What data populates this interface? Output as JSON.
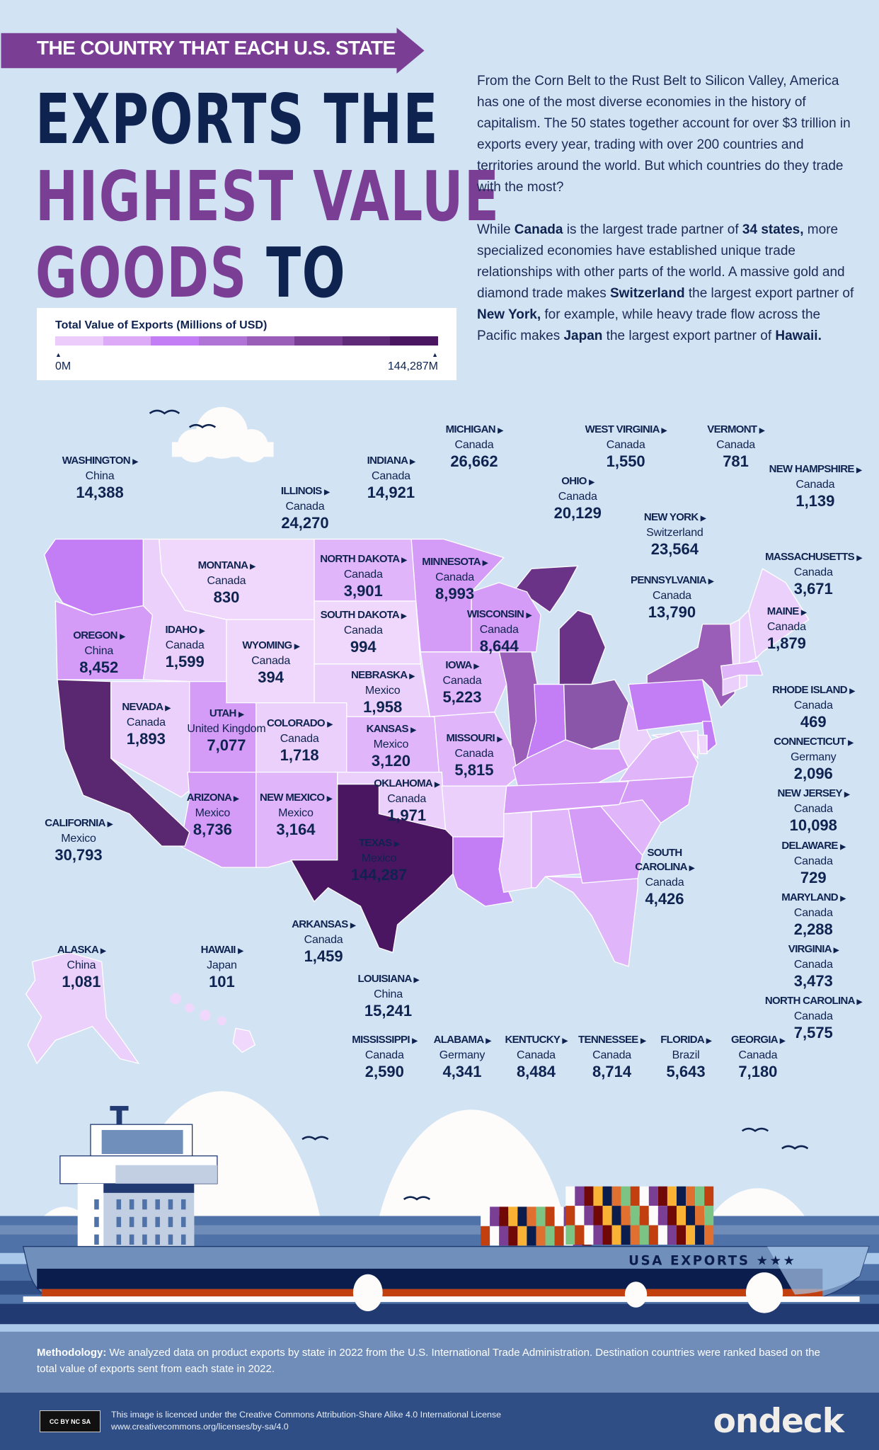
{
  "header": {
    "banner": "THE COUNTRY THAT EACH U.S. STATE",
    "title_line1": "EXPORTS THE",
    "title_line2": "HIGHEST VALUE",
    "title_line3a": "GOODS",
    "title_line3b": "TO"
  },
  "legend": {
    "title": "Total Value of Exports (Millions of USD)",
    "min": "0M",
    "max": "144,287M",
    "colors": [
      "#ecccfb",
      "#dcaaf7",
      "#c47ef5",
      "#b073d6",
      "#9a5db8",
      "#7a3f95",
      "#5f2a78",
      "#4a1661"
    ]
  },
  "intro": {
    "p1": "From the Corn Belt to the Rust Belt to Silicon Valley, America has one of the most diverse economies in the history of capitalism. The 50 states together account for over $3 trillion in exports every year, trading with over 200 countries and territories around the world. But which countries do they trade with the most?",
    "p2_a": "While ",
    "p2_b": "Canada",
    "p2_c": " is the largest trade partner of ",
    "p2_d": "34 states,",
    "p2_e": " more specialized economies have established unique trade relationships with other parts of the world. A massive gold and diamond trade makes ",
    "p2_f": "Switzerland",
    "p2_g": " the largest export partner of ",
    "p2_h": "New York,",
    "p2_i": " for example, while heavy trade flow across the Pacific makes ",
    "p2_j": "Japan",
    "p2_k": " the largest export partner of ",
    "p2_l": "Hawaii."
  },
  "states": [
    {
      "name": "WASHINGTON",
      "country": "China",
      "value": "14,388"
    },
    {
      "name": "ILLINOIS",
      "country": "Canada",
      "value": "24,270"
    },
    {
      "name": "INDIANA",
      "country": "Canada",
      "value": "14,921"
    },
    {
      "name": "MICHIGAN",
      "country": "Canada",
      "value": "26,662"
    },
    {
      "name": "WEST VIRGINIA",
      "country": "Canada",
      "value": "1,550"
    },
    {
      "name": "VERMONT",
      "country": "Canada",
      "value": "781"
    },
    {
      "name": "NEW HAMPSHIRE",
      "country": "Canada",
      "value": "1,139"
    },
    {
      "name": "OHIO",
      "country": "Canada",
      "value": "20,129"
    },
    {
      "name": "NEW YORK",
      "country": "Switzerland",
      "value": "23,564"
    },
    {
      "name": "MONTANA",
      "country": "Canada",
      "value": "830"
    },
    {
      "name": "NORTH DAKOTA",
      "country": "Canada",
      "value": "3,901"
    },
    {
      "name": "MINNESOTA",
      "country": "Canada",
      "value": "8,993"
    },
    {
      "name": "MASSACHUSETTS",
      "country": "Canada",
      "value": "3,671"
    },
    {
      "name": "PENNSYLVANIA",
      "country": "Canada",
      "value": "13,790"
    },
    {
      "name": "MAINE",
      "country": "Canada",
      "value": "1,879"
    },
    {
      "name": "OREGON",
      "country": "China",
      "value": "8,452"
    },
    {
      "name": "IDAHO",
      "country": "Canada",
      "value": "1,599"
    },
    {
      "name": "SOUTH DAKOTA",
      "country": "Canada",
      "value": "994"
    },
    {
      "name": "WISCONSIN",
      "country": "Canada",
      "value": "8,644"
    },
    {
      "name": "WYOMING",
      "country": "Canada",
      "value": "394"
    },
    {
      "name": "IOWA",
      "country": "Canada",
      "value": "5,223"
    },
    {
      "name": "NEBRASKA",
      "country": "Mexico",
      "value": "1,958"
    },
    {
      "name": "RHODE ISLAND",
      "country": "Canada",
      "value": "469"
    },
    {
      "name": "NEVADA",
      "country": "Canada",
      "value": "1,893"
    },
    {
      "name": "UTAH",
      "country": "United Kingdom",
      "value": "7,077"
    },
    {
      "name": "COLORADO",
      "country": "Canada",
      "value": "1,718"
    },
    {
      "name": "KANSAS",
      "country": "Mexico",
      "value": "3,120"
    },
    {
      "name": "MISSOURI",
      "country": "Canada",
      "value": "5,815"
    },
    {
      "name": "CONNECTICUT",
      "country": "Germany",
      "value": "2,096"
    },
    {
      "name": "OKLAHOMA",
      "country": "Canada",
      "value": "1,971"
    },
    {
      "name": "NEW JERSEY",
      "country": "Canada",
      "value": "10,098"
    },
    {
      "name": "ARIZONA",
      "country": "Mexico",
      "value": "8,736"
    },
    {
      "name": "NEW MEXICO",
      "country": "Mexico",
      "value": "3,164"
    },
    {
      "name": "CALIFORNIA",
      "country": "Mexico",
      "value": "30,793"
    },
    {
      "name": "TEXAS",
      "country": "Mexico",
      "value": "144,287"
    },
    {
      "name": "DELAWARE",
      "country": "Canada",
      "value": "729"
    },
    {
      "name": "SOUTH CAROLINA",
      "country": "Canada",
      "value": "4,426"
    },
    {
      "name": "MARYLAND",
      "country": "Canada",
      "value": "2,288"
    },
    {
      "name": "ARKANSAS",
      "country": "Canada",
      "value": "1,459"
    },
    {
      "name": "ALASKA",
      "country": "China",
      "value": "1,081"
    },
    {
      "name": "HAWAII",
      "country": "Japan",
      "value": "101"
    },
    {
      "name": "VIRGINIA",
      "country": "Canada",
      "value": "3,473"
    },
    {
      "name": "LOUISIANA",
      "country": "China",
      "value": "15,241"
    },
    {
      "name": "NORTH CAROLINA",
      "country": "Canada",
      "value": "7,575"
    },
    {
      "name": "MISSISSIPPI",
      "country": "Canada",
      "value": "2,590"
    },
    {
      "name": "ALABAMA",
      "country": "Germany",
      "value": "4,341"
    },
    {
      "name": "KENTUCKY",
      "country": "Canada",
      "value": "8,484"
    },
    {
      "name": "TENNESSEE",
      "country": "Canada",
      "value": "8,714"
    },
    {
      "name": "FLORIDA",
      "country": "Brazil",
      "value": "5,643"
    },
    {
      "name": "GEORGIA",
      "country": "Canada",
      "value": "7,180"
    }
  ],
  "ship": {
    "hull_text": "USA EXPORTS ★★★"
  },
  "methodology": {
    "label": "Methodology:",
    "text": " We analyzed data on product exports by state in 2022 from the U.S. International Trade Administration. Destination countries were ranked based on the total value of exports sent from each state in 2022."
  },
  "footer": {
    "cc_badge": "CC BY NC SA",
    "license_line1": "This image is licenced under the Creative Commons Attribution-Share Alike 4.0 International License",
    "license_line2": "www.creativecommons.org/licenses/by-sa/4.0",
    "brand": "ondeck"
  }
}
